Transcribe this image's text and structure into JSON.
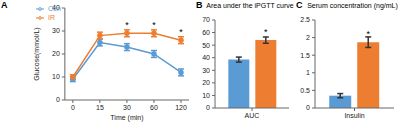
{
  "chart_data": [
    {
      "type": "line",
      "panel": "A",
      "x_label": "Time (min)",
      "y_label": "Glucose(mmol/L)",
      "categories": [
        "0",
        "15",
        "30",
        "60",
        "120"
      ],
      "series": [
        {
          "name": "Con",
          "color": "#5b9bd5",
          "values": [
            9,
            25,
            23,
            20,
            12
          ],
          "errors": [
            1,
            1.5,
            1.5,
            1.5,
            1.5
          ]
        },
        {
          "name": "IR",
          "color": "#ed7d31",
          "values": [
            10,
            28,
            29,
            29,
            26
          ],
          "errors": [
            1,
            1.5,
            1.5,
            1.5,
            1.5
          ]
        }
      ],
      "ylim": [
        0,
        40
      ],
      "yticks": [
        0,
        10,
        20,
        30,
        40
      ],
      "legend": "upper left",
      "marker": "circle",
      "annotations": [
        {
          "series": "IR",
          "category": "30",
          "text": "*"
        },
        {
          "series": "IR",
          "category": "60",
          "text": "*"
        },
        {
          "series": "IR",
          "category": "120",
          "text": "*"
        }
      ]
    },
    {
      "type": "bar",
      "panel": "B",
      "title": "Area under the iPGTT curve",
      "categories": [
        "AUC"
      ],
      "series": [
        {
          "name": "Con",
          "color": "#5b9bd5",
          "values": [
            38.5
          ],
          "errors": [
            2
          ]
        },
        {
          "name": "IR",
          "color": "#ed7d31",
          "values": [
            54
          ],
          "errors": [
            2.5
          ]
        }
      ],
      "ylim": [
        0,
        70
      ],
      "yticks": [
        0,
        10,
        20,
        30,
        40,
        50,
        60,
        70
      ],
      "annotations": [
        {
          "series": "IR",
          "category": "AUC",
          "text": "*"
        }
      ]
    },
    {
      "type": "bar",
      "panel": "C",
      "title": "Serum concentration (ng/mL)",
      "categories": [
        "Insulin"
      ],
      "series": [
        {
          "name": "Con",
          "color": "#5b9bd5",
          "values": [
            0.35
          ],
          "errors": [
            0.06
          ]
        },
        {
          "name": "IR",
          "color": "#ed7d31",
          "values": [
            1.87
          ],
          "errors": [
            0.15
          ]
        }
      ],
      "ylim": [
        0,
        2.5
      ],
      "yticks": [
        0,
        0.5,
        1,
        1.5,
        2,
        2.5
      ],
      "annotations": [
        {
          "series": "IR",
          "category": "Insulin",
          "text": "*"
        }
      ]
    }
  ]
}
